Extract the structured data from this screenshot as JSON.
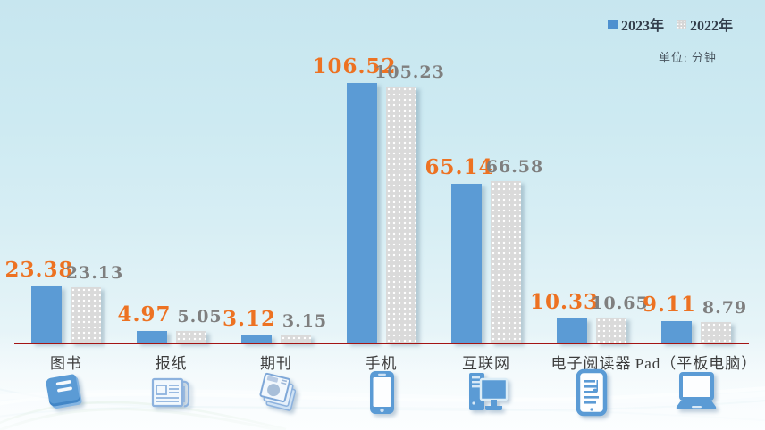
{
  "unit_label": "单位: 分钟",
  "chart_data": {
    "type": "bar",
    "title": "",
    "categories": [
      "图书",
      "报纸",
      "期刊",
      "手机",
      "互联网",
      "电子阅读器",
      "Pad（平板电脑）"
    ],
    "series": [
      {
        "name": "2023年",
        "color": "#5b9bd5",
        "pattern": "solid",
        "values": [
          23.38,
          4.97,
          3.12,
          106.52,
          65.14,
          10.33,
          9.11
        ],
        "label_color": "#ed7222"
      },
      {
        "name": "2022年",
        "color": "#dadada",
        "pattern": "white-dots",
        "values": [
          23.13,
          5.05,
          3.15,
          105.23,
          66.58,
          10.65,
          8.79
        ],
        "label_color": "#7f7f7f"
      }
    ],
    "unit": "分钟",
    "xlabel": "",
    "ylabel": "",
    "ylim": [
      0,
      110
    ],
    "grid": false,
    "axis_line_color": "#a31414",
    "legend_position": "top-right",
    "background": "#cdeaf2"
  },
  "icons": [
    "book-icon",
    "newspaper-icon",
    "magazine-icon",
    "phone-icon",
    "computer-icon",
    "ereader-icon",
    "laptop-icon"
  ]
}
